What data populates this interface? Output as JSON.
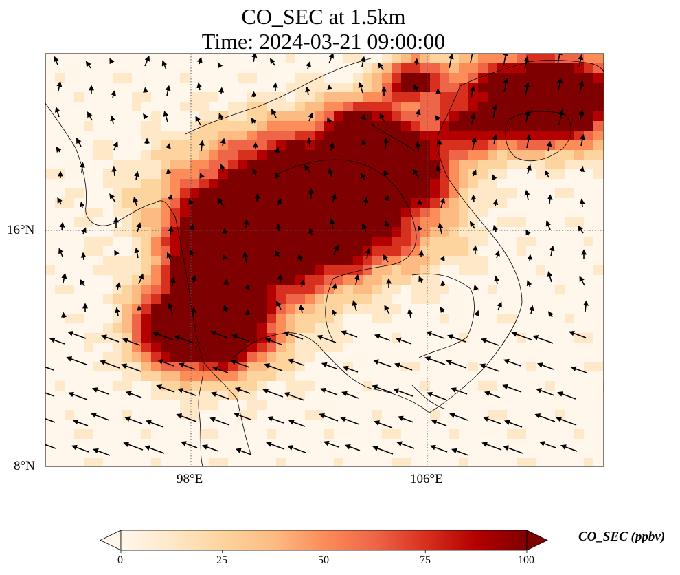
{
  "title": {
    "line1": "CO_SEC at 1.5km",
    "line2": "Time: 2024-03-21 09:00:00"
  },
  "map": {
    "projection": "PlateCarree",
    "lon_range": [
      93,
      112
    ],
    "lat_range": [
      8,
      22
    ],
    "gridlines": {
      "style": "dotted",
      "lons": [
        98,
        106
      ],
      "lats": [
        8,
        16
      ]
    },
    "x_tick_labels": [
      "98°E",
      "106°E"
    ],
    "y_tick_labels": [
      "16°N",
      "8°N"
    ],
    "field": "CO_SEC",
    "colormap": "OrRd",
    "vectors": "wind"
  },
  "colorbar": {
    "label": "CO_SEC (ppbv)",
    "ticks": [
      "0",
      "25",
      "50",
      "75",
      "100"
    ],
    "range": [
      0,
      100
    ],
    "extend": "both",
    "colors": [
      "#fff7ec",
      "#fee8c8",
      "#fdd49e",
      "#fdbb84",
      "#fc8d59",
      "#ef6548",
      "#d7301f",
      "#b30000",
      "#7f0000"
    ]
  }
}
